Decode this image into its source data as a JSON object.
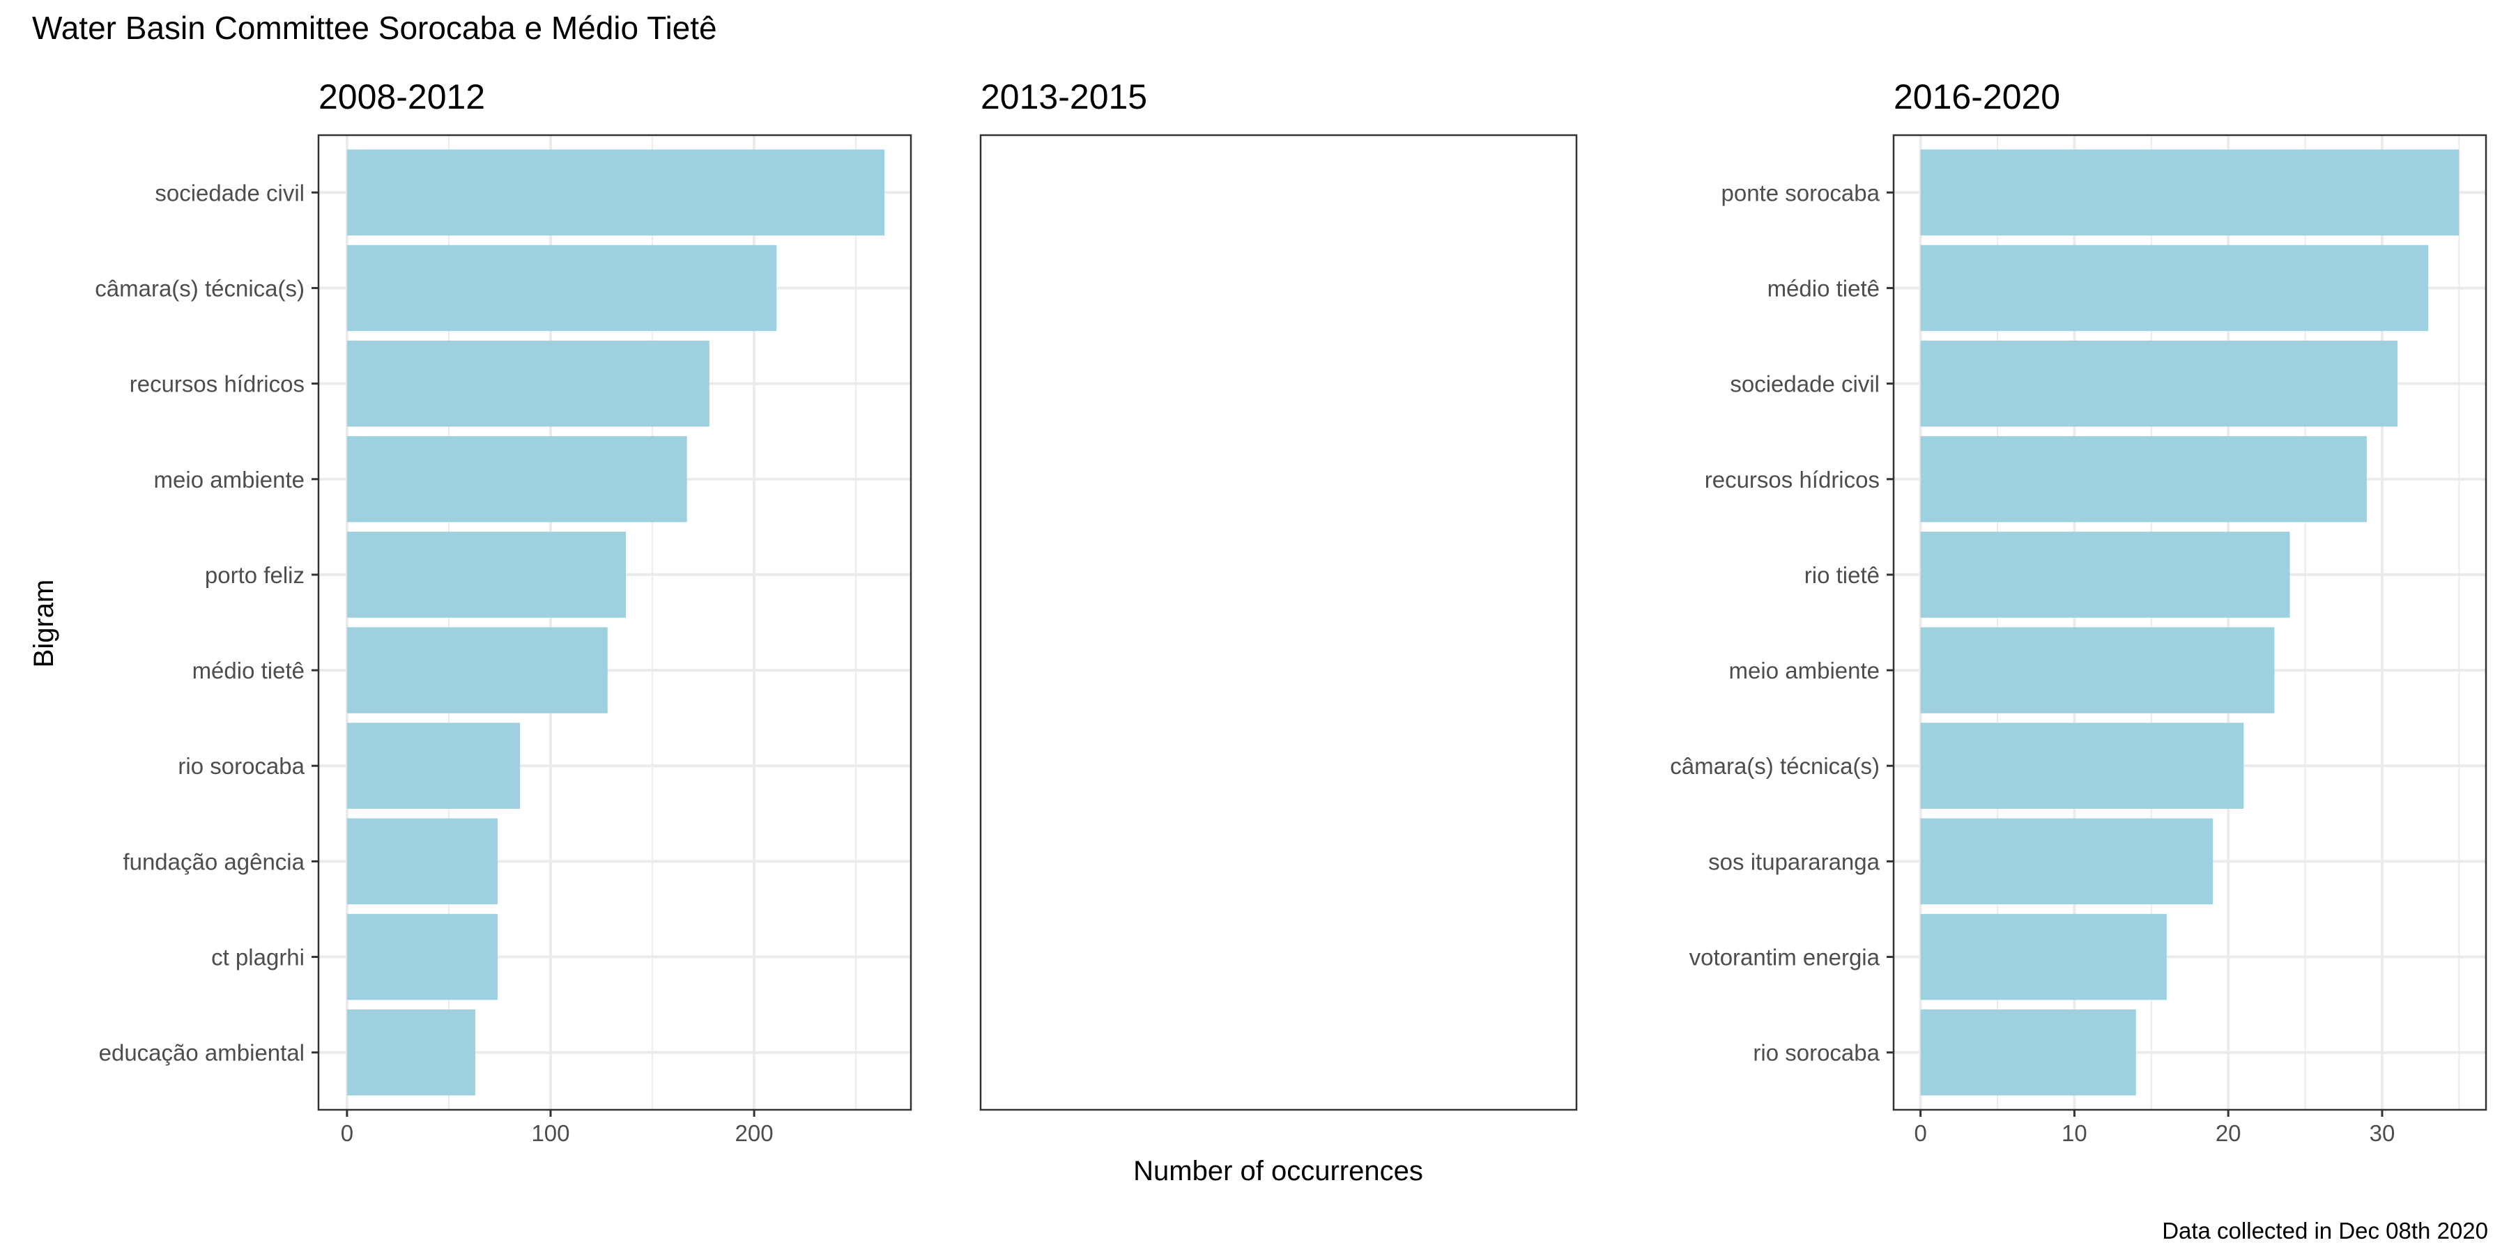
{
  "chart_data": {
    "title": "Water Basin Committee Sorocaba e Médio Tietê",
    "ylabel": "Bigram",
    "xlabel": "Number of occurrences",
    "caption": "Data collected in Dec 08th 2020",
    "bar_color": "#9fd0e0",
    "panel_border_color": "#333333",
    "grid_color": "#ebebeb",
    "grid": true,
    "panels": [
      {
        "type": "bar",
        "orientation": "horizontal",
        "title": "2008-2012",
        "categories": [
          "sociedade civil",
          "câmara(s) técnica(s)",
          "recursos hídricos",
          "meio ambiente",
          "porto feliz",
          "médio tietê",
          "rio sorocaba",
          "fundação agência",
          "ct plagrhi",
          "educação ambiental"
        ],
        "values": [
          264,
          211,
          178,
          167,
          137,
          128,
          85,
          74,
          74,
          63
        ],
        "xlim": [
          -14,
          277
        ],
        "xticks": [
          0,
          100,
          200
        ],
        "xtick_labels": [
          "0",
          "100",
          "200"
        ]
      },
      {
        "type": "bar",
        "orientation": "horizontal",
        "title": "2013-2015",
        "categories": [],
        "values": []
      },
      {
        "type": "bar",
        "orientation": "horizontal",
        "title": "2016-2020",
        "categories": [
          "ponte sorocaba",
          "médio tietê",
          "sociedade civil",
          "recursos hídricos",
          "rio tietê",
          "meio ambiente",
          "câmara(s) técnica(s)",
          "sos itupararanga",
          "votorantim energia",
          "rio sorocaba"
        ],
        "values": [
          35,
          33,
          31,
          29,
          24,
          23,
          21,
          19,
          16,
          14
        ],
        "xlim": [
          -1.75,
          36.75
        ],
        "xticks": [
          0,
          10,
          20,
          30
        ],
        "xtick_labels": [
          "0",
          "10",
          "20",
          "30"
        ]
      }
    ]
  }
}
